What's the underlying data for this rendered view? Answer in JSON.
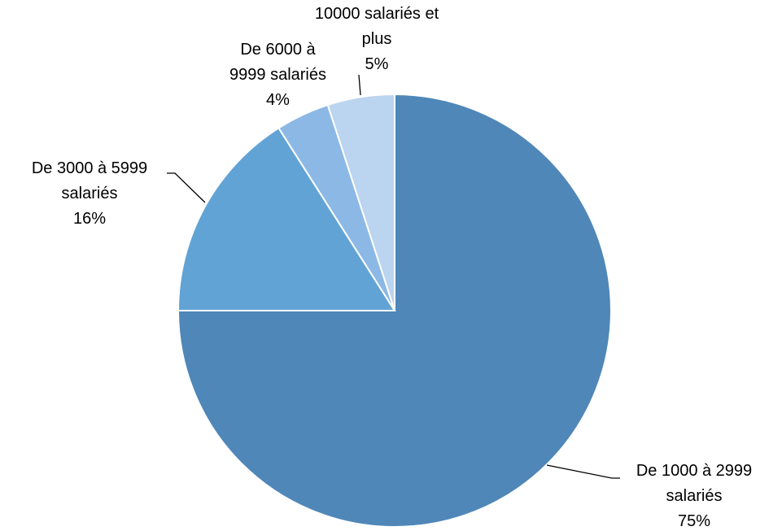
{
  "chart_data": {
    "type": "pie",
    "categories": [
      "De 1000 à 2999 salariés",
      "De 3000 à 5999 salariés",
      "De 6000 à 9999 salariés",
      "10000 salariés et plus"
    ],
    "values": [
      75,
      16,
      4,
      5
    ],
    "value_labels": [
      "75%",
      "16%",
      "4%",
      "5%"
    ],
    "colors": [
      "#4f87b8",
      "#62a3d6",
      "#8cb8e6",
      "#bbd4ef"
    ]
  }
}
